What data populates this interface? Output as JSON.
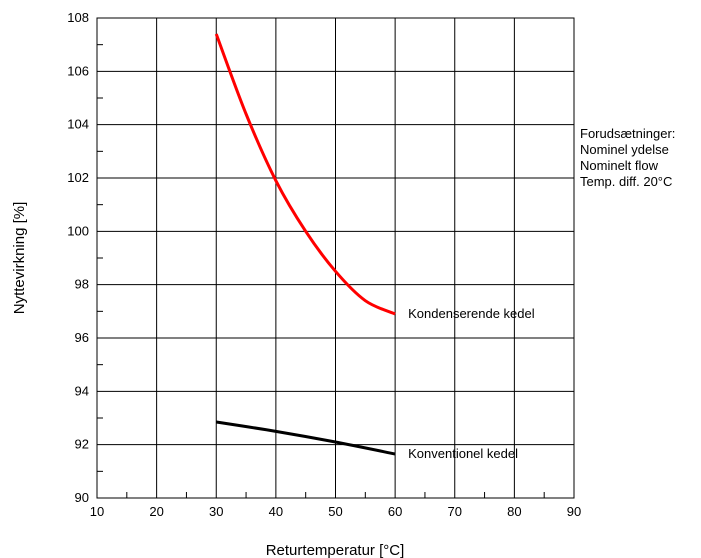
{
  "chart_data": {
    "type": "line",
    "title": "",
    "xlabel": "Returtemperatur [°C]",
    "ylabel": "Nyttevirkning [%]",
    "xlim": [
      10,
      90
    ],
    "ylim": [
      90,
      108
    ],
    "x_ticks": [
      10,
      20,
      30,
      40,
      50,
      60,
      70,
      80,
      90
    ],
    "y_ticks": [
      90,
      92,
      94,
      96,
      98,
      100,
      102,
      104,
      106,
      108
    ],
    "x_tick_labels": [
      "10",
      "20",
      "30",
      "40",
      "50",
      "60",
      "70",
      "80",
      "90"
    ],
    "y_tick_labels": [
      "90",
      "92",
      "94",
      "96",
      "98",
      "100",
      "102",
      "104",
      "106",
      "108"
    ],
    "grid": true,
    "series": [
      {
        "name": "Kondenserende kedel",
        "color": "#ff0000",
        "x": [
          30,
          35,
          40,
          45,
          50,
          55,
          60
        ],
        "y": [
          107.4,
          104.4,
          101.9,
          100.0,
          98.5,
          97.4,
          96.9
        ]
      },
      {
        "name": "Konventionel kedel",
        "color": "#000000",
        "x": [
          30,
          40,
          50,
          60
        ],
        "y": [
          92.85,
          92.5,
          92.1,
          91.65
        ]
      }
    ],
    "annotation": {
      "lines": [
        "Forudsætninger:",
        "Nominel ydelse",
        "Nominelt flow",
        "Temp. diff. 20°C"
      ]
    }
  }
}
